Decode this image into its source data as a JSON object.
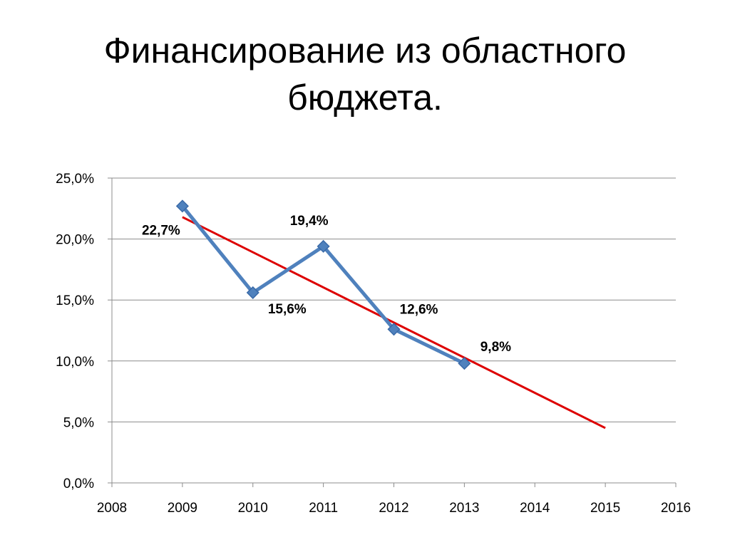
{
  "slide": {
    "title_line1": "Финансирование из областного",
    "title_line2": "бюджета."
  },
  "chart_data": {
    "type": "line",
    "title": "Финансирование из областного бюджета.",
    "xlim": [
      2008,
      2016
    ],
    "ylim": [
      0,
      25
    ],
    "x_ticks": [
      "2008",
      "2009",
      "2010",
      "2011",
      "2012",
      "2013",
      "2014",
      "2015",
      "2016"
    ],
    "y_ticks": [
      "0,0%",
      "5,0%",
      "10,0%",
      "15,0%",
      "20,0%",
      "25,0%"
    ],
    "grid": true,
    "legend": "none",
    "series": [
      {
        "x": [
          2009,
          2010,
          2011,
          2012,
          2013
        ],
        "y": [
          22.7,
          15.6,
          19.4,
          12.6,
          9.8
        ],
        "labels": [
          "22,7%",
          "15,6%",
          "19,4%",
          "12,6%",
          "9,8%"
        ],
        "color": "#4F81BD",
        "marker": "diamond"
      },
      {
        "kind": "trendline",
        "x": [
          2009,
          2015
        ],
        "y": [
          21.8,
          4.5
        ],
        "color": "#DD0000"
      }
    ]
  }
}
